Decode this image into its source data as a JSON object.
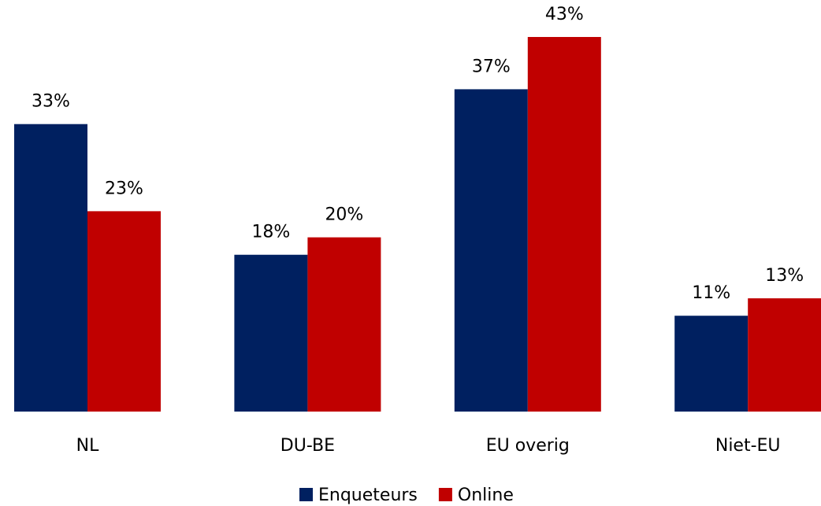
{
  "chart_data": {
    "type": "bar",
    "categories": [
      "NL",
      "DU-BE",
      "EU overig",
      "Niet-EU"
    ],
    "series": [
      {
        "name": "Enqueteurs",
        "color": "#002060",
        "values": [
          33,
          18,
          37,
          11
        ],
        "value_labels": [
          "33%",
          "18%",
          "37%",
          "11%"
        ]
      },
      {
        "name": "Online",
        "color": "#c00000",
        "values": [
          23,
          20,
          43,
          13
        ],
        "value_labels": [
          "23%",
          "20%",
          "43%",
          "13%"
        ]
      }
    ],
    "legend": "bottom"
  }
}
